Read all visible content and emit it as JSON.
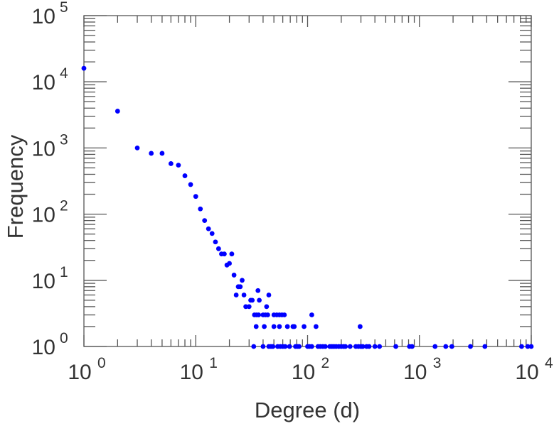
{
  "chart_data": {
    "type": "scatter",
    "title": "",
    "xlabel": "Degree (d)",
    "ylabel": "Frequency",
    "xscale": "log",
    "yscale": "log",
    "xlim": [
      1,
      10000
    ],
    "ylim": [
      1,
      100000
    ],
    "grid": false,
    "marker_color": "#0000ff",
    "x_ticks": [
      {
        "base": "10",
        "exp": "0"
      },
      {
        "base": "10",
        "exp": "1"
      },
      {
        "base": "10",
        "exp": "2"
      },
      {
        "base": "10",
        "exp": "3"
      },
      {
        "base": "10",
        "exp": "4"
      }
    ],
    "y_ticks": [
      {
        "base": "10",
        "exp": "0"
      },
      {
        "base": "10",
        "exp": "1"
      },
      {
        "base": "10",
        "exp": "2"
      },
      {
        "base": "10",
        "exp": "3"
      },
      {
        "base": "10",
        "exp": "4"
      },
      {
        "base": "10",
        "exp": "5"
      }
    ],
    "points": [
      [
        1,
        16000
      ],
      [
        2,
        3600
      ],
      [
        3,
        1000
      ],
      [
        4,
        830
      ],
      [
        5,
        830
      ],
      [
        6,
        580
      ],
      [
        7,
        550
      ],
      [
        8,
        380
      ],
      [
        9,
        280
      ],
      [
        10,
        185
      ],
      [
        11,
        120
      ],
      [
        12,
        80
      ],
      [
        13,
        60
      ],
      [
        14,
        51
      ],
      [
        15,
        38
      ],
      [
        16,
        30
      ],
      [
        17,
        25
      ],
      [
        18,
        25
      ],
      [
        19,
        17
      ],
      [
        20,
        18
      ],
      [
        21,
        25
      ],
      [
        22,
        12
      ],
      [
        23,
        6
      ],
      [
        24,
        8
      ],
      [
        25,
        8
      ],
      [
        26,
        10
      ],
      [
        27,
        6
      ],
      [
        28,
        4
      ],
      [
        30,
        4
      ],
      [
        31,
        5
      ],
      [
        32,
        5
      ],
      [
        36,
        7
      ],
      [
        37,
        5
      ],
      [
        43,
        4
      ],
      [
        45,
        6
      ],
      [
        33.5,
        3
      ],
      [
        35,
        3
      ],
      [
        36.5,
        3
      ],
      [
        40,
        3
      ],
      [
        42,
        3
      ],
      [
        44,
        3
      ],
      [
        50,
        3
      ],
      [
        53,
        3
      ],
      [
        56,
        3
      ],
      [
        59,
        3
      ],
      [
        62,
        3
      ],
      [
        109,
        3
      ],
      [
        34.7,
        2
      ],
      [
        41,
        2
      ],
      [
        50,
        2
      ],
      [
        56,
        2
      ],
      [
        66,
        2
      ],
      [
        74,
        2
      ],
      [
        76,
        2
      ],
      [
        93,
        2
      ],
      [
        119,
        2
      ],
      [
        295,
        2
      ],
      [
        33,
        1
      ],
      [
        40,
        1
      ],
      [
        45,
        1
      ],
      [
        47,
        1
      ],
      [
        49,
        1
      ],
      [
        54,
        1
      ],
      [
        57,
        1
      ],
      [
        60,
        1
      ],
      [
        63,
        1
      ],
      [
        69,
        1
      ],
      [
        78,
        1
      ],
      [
        81,
        1
      ],
      [
        84,
        1
      ],
      [
        100,
        1
      ],
      [
        104,
        1
      ],
      [
        109,
        1
      ],
      [
        124,
        1
      ],
      [
        130,
        1
      ],
      [
        137,
        1
      ],
      [
        144,
        1
      ],
      [
        158,
        1
      ],
      [
        165,
        1
      ],
      [
        172,
        1
      ],
      [
        180,
        1
      ],
      [
        190,
        1
      ],
      [
        200,
        1
      ],
      [
        210,
        1
      ],
      [
        218,
        1
      ],
      [
        240,
        1
      ],
      [
        270,
        1
      ],
      [
        285,
        1
      ],
      [
        300,
        1
      ],
      [
        312,
        1
      ],
      [
        337,
        1
      ],
      [
        355,
        1
      ],
      [
        400,
        1
      ],
      [
        440,
        1
      ],
      [
        615,
        1
      ],
      [
        815,
        1
      ],
      [
        860,
        1
      ],
      [
        1380,
        1
      ],
      [
        1720,
        1
      ],
      [
        1950,
        1
      ],
      [
        2860,
        1
      ],
      [
        3850,
        1
      ],
      [
        8200,
        1
      ],
      [
        9300,
        1
      ],
      [
        10000,
        1
      ]
    ]
  }
}
